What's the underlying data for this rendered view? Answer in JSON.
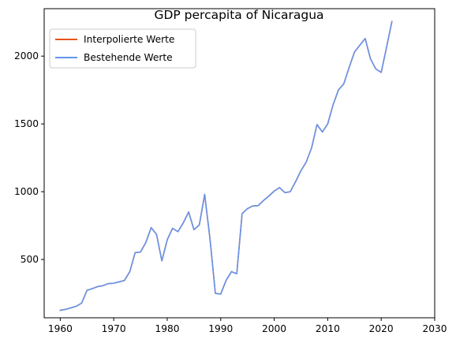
{
  "chart_data": {
    "type": "line",
    "title": "GDP percapita of Nicaragua",
    "xlabel": "",
    "ylabel": "",
    "xlim": [
      1957,
      2030
    ],
    "ylim": [
      70,
      2350
    ],
    "xticks": [
      1960,
      1970,
      1980,
      1990,
      2000,
      2010,
      2020,
      2030
    ],
    "yticks": [
      500,
      1000,
      1500,
      2000
    ],
    "grid": false,
    "legend_position": "upper-left",
    "series": [
      {
        "name": "Interpolierte Werte",
        "color": "#e8531c",
        "x": [
          1960,
          1961,
          1962,
          1963,
          1964,
          1965,
          1966,
          1967,
          1968,
          1969,
          1970,
          1971,
          1972,
          1973,
          1974,
          1975,
          1976,
          1977,
          1978,
          1979,
          1980,
          1981,
          1982,
          1983,
          1984,
          1985,
          1986,
          1987,
          1988,
          1989,
          1990,
          1991,
          1992,
          1993,
          1994,
          1995,
          1996,
          1997,
          1998,
          1999,
          2000,
          2001,
          2002,
          2003,
          2004,
          2005,
          2006,
          2007,
          2008,
          2009,
          2010,
          2011,
          2012,
          2013,
          2014,
          2015,
          2016,
          2017,
          2018,
          2019,
          2020,
          2021,
          2022
        ],
        "values": [
          125,
          132,
          143,
          155,
          178,
          272,
          285,
          300,
          307,
          322,
          325,
          335,
          345,
          410,
          550,
          555,
          625,
          735,
          685,
          490,
          645,
          730,
          705,
          770,
          850,
          720,
          755,
          980,
          650,
          250,
          245,
          345,
          410,
          395,
          838,
          875,
          895,
          897,
          935,
          968,
          1005,
          1030,
          993,
          1000,
          1075,
          1155,
          1220,
          1325,
          1495,
          1440,
          1500,
          1640,
          1750,
          1795,
          1915,
          2030,
          2080,
          2130,
          1980,
          1905,
          1880,
          2065,
          2255
        ]
      },
      {
        "name": "Bestehende Werte",
        "color": "#6495ed",
        "x": [
          1960,
          1961,
          1962,
          1963,
          1964,
          1965,
          1966,
          1967,
          1968,
          1969,
          1970,
          1971,
          1972,
          1973,
          1974,
          1975,
          1976,
          1977,
          1978,
          1979,
          1980,
          1981,
          1982,
          1983,
          1984,
          1985,
          1986,
          1987,
          1988,
          1989,
          1990,
          1991,
          1992,
          1993,
          1994,
          1995,
          1996,
          1997,
          1998,
          1999,
          2000,
          2001,
          2002,
          2003,
          2004,
          2005,
          2006,
          2007,
          2008,
          2009,
          2010,
          2011,
          2012,
          2013,
          2014,
          2015,
          2016,
          2017,
          2018,
          2019,
          2020,
          2021,
          2022
        ],
        "values": [
          125,
          132,
          143,
          155,
          178,
          272,
          285,
          300,
          307,
          322,
          325,
          335,
          345,
          410,
          550,
          555,
          625,
          735,
          685,
          490,
          645,
          730,
          705,
          770,
          850,
          720,
          755,
          980,
          650,
          250,
          245,
          345,
          410,
          395,
          838,
          875,
          895,
          897,
          935,
          968,
          1005,
          1030,
          993,
          1000,
          1075,
          1155,
          1220,
          1325,
          1495,
          1440,
          1500,
          1640,
          1750,
          1795,
          1915,
          2030,
          2080,
          2130,
          1980,
          1905,
          1880,
          2065,
          2255
        ]
      }
    ]
  }
}
